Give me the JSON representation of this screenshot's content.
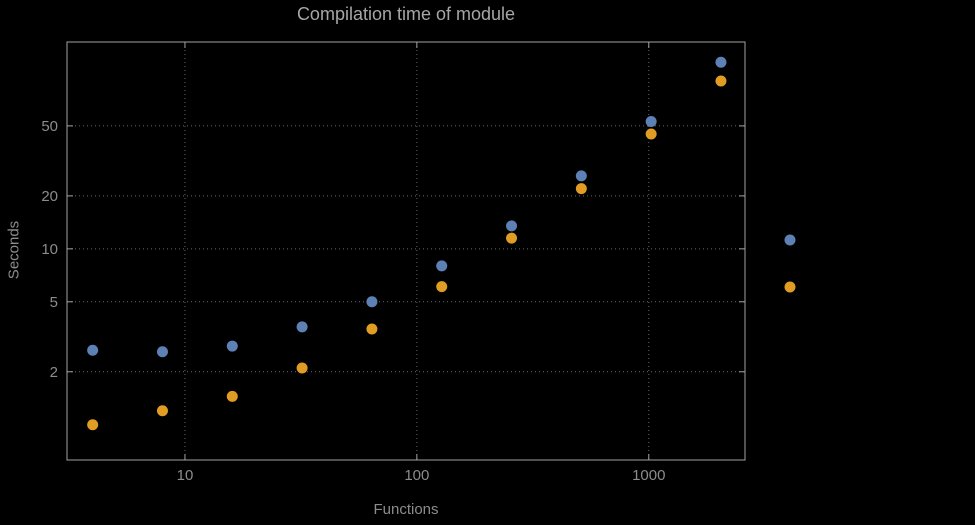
{
  "chart_data": {
    "type": "scatter",
    "title": "Compilation time of module",
    "xlabel": "Functions",
    "ylabel": "Seconds",
    "x_scale": "log",
    "y_scale": "log",
    "xlim": [
      3.1,
      2600
    ],
    "ylim": [
      0.63,
      150
    ],
    "grid": "dotted",
    "xticks": [
      {
        "value": 10,
        "label": "10"
      },
      {
        "value": 100,
        "label": "100"
      },
      {
        "value": 1000,
        "label": "1000"
      }
    ],
    "yticks": [
      {
        "value": 2,
        "label": "2"
      },
      {
        "value": 5,
        "label": "5"
      },
      {
        "value": 10,
        "label": "10"
      },
      {
        "value": 20,
        "label": "20"
      },
      {
        "value": 50,
        "label": "50"
      }
    ],
    "x": [
      4,
      8,
      16,
      32,
      64,
      128,
      256,
      512,
      1024,
      2048
    ],
    "series": [
      {
        "name": "series-1",
        "color": "#5E81B5",
        "values": [
          2.65,
          2.6,
          2.8,
          3.6,
          5.0,
          8.0,
          13.5,
          26,
          53,
          115
        ]
      },
      {
        "name": "series-2",
        "color": "#E19C24",
        "values": [
          1.0,
          1.2,
          1.45,
          2.1,
          3.5,
          6.1,
          11.5,
          22,
          45,
          90
        ]
      }
    ],
    "legend": {
      "position": "outside-right",
      "text_visible": false
    }
  }
}
